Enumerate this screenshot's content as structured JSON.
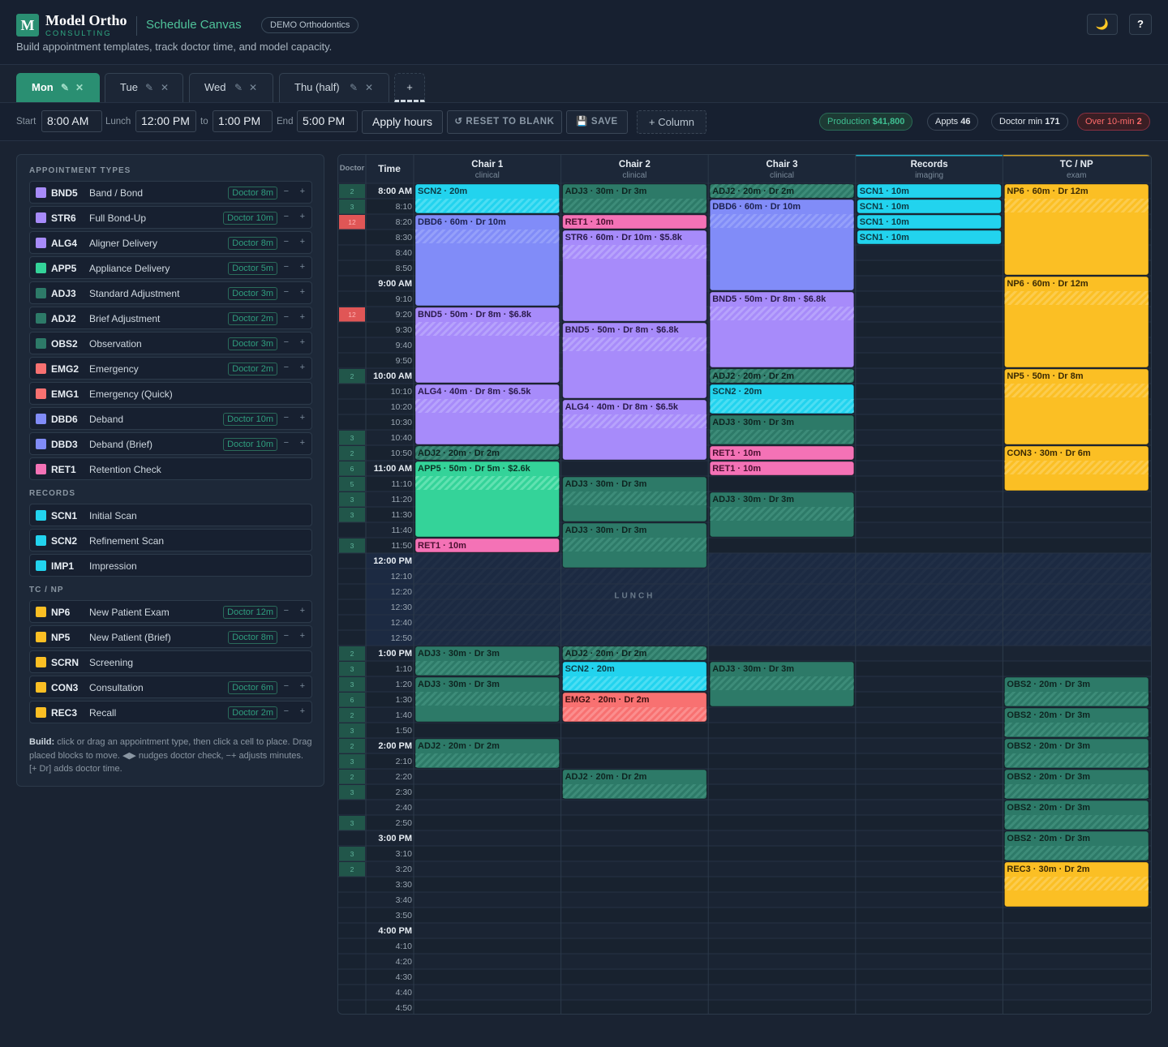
{
  "header": {
    "logo_letter": "M",
    "brand": "Model Ortho",
    "brand_sub": "CONSULTING",
    "app_title": "Schedule Canvas",
    "org_badge": "DEMO Orthodontics",
    "tagline": "Build appointment templates, track doctor time, and model capacity.",
    "theme_icon": "moon-icon",
    "theme_glyph": "🌙",
    "help_label": "?"
  },
  "tabs": [
    {
      "label": "Mon",
      "active": true
    },
    {
      "label": "Tue",
      "active": false
    },
    {
      "label": "Wed",
      "active": false
    },
    {
      "label": "Thu (half)",
      "active": false
    }
  ],
  "tab_edit_glyph": "✎",
  "tab_close_glyph": "✕",
  "tab_add_label": "+",
  "toolbar": {
    "start_label": "Start",
    "start_value": "8:00 AM",
    "lunch_label": "Lunch",
    "lunch_start": "12:00 PM",
    "to_label": "to",
    "lunch_end": "1:00 PM",
    "end_label": "End",
    "end_value": "5:00 PM",
    "apply_label": "Apply hours",
    "reset_label": "↺ RESET TO BLANK",
    "save_label": "💾 SAVE",
    "add_column_label": "+ Column"
  },
  "stats": {
    "production_label": "Production",
    "production_value": "$41,800",
    "appts_label": "Appts",
    "appts_value": "46",
    "doctor_label": "Doctor min",
    "doctor_value": "171",
    "over_label": "Over 10-min",
    "over_value": "2"
  },
  "colors": {
    "bg": "#1a2332",
    "accent": "#2a8f72",
    "purple": "#a78bfa",
    "indigo": "#818cf8",
    "green": "#34d399",
    "teal": "#2d7a68",
    "red": "#f87171",
    "pink": "#f472b6",
    "cyan": "#22d3ee",
    "yellow": "#fbbf24"
  },
  "panel": {
    "sections": [
      {
        "title": "APPOINTMENT TYPES",
        "items": [
          {
            "code": "BND5",
            "name": "Band / Bond",
            "doctor": "Doctor 8m",
            "color": "#a78bfa"
          },
          {
            "code": "STR6",
            "name": "Full Bond-Up",
            "doctor": "Doctor 10m",
            "color": "#a78bfa"
          },
          {
            "code": "ALG4",
            "name": "Aligner Delivery",
            "doctor": "Doctor 8m",
            "color": "#a78bfa"
          },
          {
            "code": "APP5",
            "name": "Appliance Delivery",
            "doctor": "Doctor 5m",
            "color": "#34d399"
          },
          {
            "code": "ADJ3",
            "name": "Standard Adjustment",
            "doctor": "Doctor 3m",
            "color": "#2d7a68"
          },
          {
            "code": "ADJ2",
            "name": "Brief Adjustment",
            "doctor": "Doctor 2m",
            "color": "#2d7a68"
          },
          {
            "code": "OBS2",
            "name": "Observation",
            "doctor": "Doctor 3m",
            "color": "#2d7a68"
          },
          {
            "code": "EMG2",
            "name": "Emergency",
            "doctor": "Doctor 2m",
            "color": "#f87171"
          },
          {
            "code": "EMG1",
            "name": "Emergency (Quick)",
            "doctor": "",
            "color": "#f87171"
          },
          {
            "code": "DBD6",
            "name": "Deband",
            "doctor": "Doctor 10m",
            "color": "#818cf8"
          },
          {
            "code": "DBD3",
            "name": "Deband (Brief)",
            "doctor": "Doctor 10m",
            "color": "#818cf8"
          },
          {
            "code": "RET1",
            "name": "Retention Check",
            "doctor": "",
            "color": "#f472b6"
          }
        ]
      },
      {
        "title": "RECORDS",
        "items": [
          {
            "code": "SCN1",
            "name": "Initial Scan",
            "doctor": "",
            "color": "#22d3ee"
          },
          {
            "code": "SCN2",
            "name": "Refinement Scan",
            "doctor": "",
            "color": "#22d3ee"
          },
          {
            "code": "IMP1",
            "name": "Impression",
            "doctor": "",
            "color": "#22d3ee"
          }
        ]
      },
      {
        "title": "TC / NP",
        "items": [
          {
            "code": "NP6",
            "name": "New Patient Exam",
            "doctor": "Doctor 12m",
            "color": "#fbbf24"
          },
          {
            "code": "NP5",
            "name": "New Patient (Brief)",
            "doctor": "Doctor 8m",
            "color": "#fbbf24"
          },
          {
            "code": "SCRN",
            "name": "Screening",
            "doctor": "",
            "color": "#fbbf24"
          },
          {
            "code": "CON3",
            "name": "Consultation",
            "doctor": "Doctor 6m",
            "color": "#fbbf24"
          },
          {
            "code": "REC3",
            "name": "Recall",
            "doctor": "Doctor 2m",
            "color": "#fbbf24"
          }
        ]
      }
    ],
    "minus_glyph": "−",
    "plus_glyph": "+",
    "help_bold": "Build:",
    "help_text": " click or drag an appointment type, then click a cell to place. Drag placed blocks to move. ◀▶ nudges doctor check, −+ adjusts minutes. [+ Dr] adds doctor time."
  },
  "grid": {
    "doctor_header": "Doctor",
    "time_header": "Time",
    "lunch_label": "LUNCH",
    "columns": [
      {
        "name": "Chair 1",
        "sub": "clinical"
      },
      {
        "name": "Chair 2",
        "sub": "clinical"
      },
      {
        "name": "Chair 3",
        "sub": "clinical"
      },
      {
        "name": "Records",
        "sub": "imaging"
      },
      {
        "name": "TC / NP",
        "sub": "exam"
      }
    ],
    "times": [
      "8:00 AM",
      "8:10",
      "8:20",
      "8:30",
      "8:40",
      "8:50",
      "9:00 AM",
      "9:10",
      "9:20",
      "9:30",
      "9:40",
      "9:50",
      "10:00 AM",
      "10:10",
      "10:20",
      "10:30",
      "10:40",
      "10:50",
      "11:00 AM",
      "11:10",
      "11:20",
      "11:30",
      "11:40",
      "11:50",
      "12:00 PM",
      "12:10",
      "12:20",
      "12:30",
      "12:40",
      "12:50",
      "1:00 PM",
      "1:10",
      "1:20",
      "1:30",
      "1:40",
      "1:50",
      "2:00 PM",
      "2:10",
      "2:20",
      "2:30",
      "2:40",
      "2:50",
      "3:00 PM",
      "3:10",
      "3:20",
      "3:30",
      "3:40",
      "3:50",
      "4:00 PM",
      "4:10",
      "4:20",
      "4:30",
      "4:40",
      "4:50"
    ],
    "doctor_load": [
      "2",
      "3",
      "12",
      "",
      "",
      "",
      "",
      "",
      "12",
      "",
      "",
      "",
      "2",
      "",
      "",
      "",
      "3",
      "2",
      "6",
      "5",
      "3",
      "3",
      "",
      "3",
      "",
      "",
      "",
      "",
      "",
      "",
      "2",
      "3",
      "3",
      "6",
      "2",
      "3",
      "2",
      "3",
      "2",
      "3",
      "",
      "3",
      "",
      "3",
      "2",
      "",
      "",
      "",
      "",
      "",
      "",
      "",
      "",
      ""
    ],
    "blocks": [
      {
        "col": 0,
        "start": 0,
        "len": 2,
        "label": "SCN2 · 20m",
        "kind": "cyan"
      },
      {
        "col": 0,
        "start": 2,
        "len": 6,
        "label": "DBD6 · 60m · Dr 10m",
        "kind": "indigo"
      },
      {
        "col": 0,
        "start": 8,
        "len": 5,
        "label": "BND5 · 50m · Dr 8m · $6.8k",
        "kind": "purple"
      },
      {
        "col": 0,
        "start": 13,
        "len": 4,
        "label": "ALG4 · 40m · Dr 8m · $6.5k",
        "kind": "purple"
      },
      {
        "col": 0,
        "start": 17,
        "len": 1,
        "label": "ADJ2 · 20m · Dr 2m",
        "kind": "teal"
      },
      {
        "col": 0,
        "start": 18,
        "len": 5,
        "label": "APP5 · 50m · Dr 5m · $2.6k",
        "kind": "green"
      },
      {
        "col": 0,
        "start": 23,
        "len": 1,
        "label": "RET1 · 10m",
        "kind": "pink"
      },
      {
        "col": 0,
        "start": 30,
        "len": 2,
        "label": "ADJ3 · 30m · Dr 3m",
        "kind": "teal"
      },
      {
        "col": 0,
        "start": 32,
        "len": 3,
        "label": "ADJ3 · 30m · Dr 3m",
        "kind": "teal"
      },
      {
        "col": 0,
        "start": 36,
        "len": 2,
        "label": "ADJ2 · 20m · Dr 2m",
        "kind": "teal"
      },
      {
        "col": 1,
        "start": 0,
        "len": 2,
        "label": "ADJ3 · 30m · Dr 3m",
        "kind": "teal"
      },
      {
        "col": 1,
        "start": 2,
        "len": 1,
        "label": "RET1 · 10m",
        "kind": "pink"
      },
      {
        "col": 1,
        "start": 3,
        "len": 6,
        "label": "STR6 · 60m · Dr 10m · $5.8k",
        "kind": "purple"
      },
      {
        "col": 1,
        "start": 9,
        "len": 5,
        "label": "BND5 · 50m · Dr 8m · $6.8k",
        "kind": "purple"
      },
      {
        "col": 1,
        "start": 14,
        "len": 4,
        "label": "ALG4 · 40m · Dr 8m · $6.5k",
        "kind": "purple"
      },
      {
        "col": 1,
        "start": 19,
        "len": 3,
        "label": "ADJ3 · 30m · Dr 3m",
        "kind": "teal"
      },
      {
        "col": 1,
        "start": 22,
        "len": 3,
        "label": "ADJ3 · 30m · Dr 3m",
        "kind": "teal"
      },
      {
        "col": 1,
        "start": 30,
        "len": 1,
        "label": "ADJ2 · 20m · Dr 2m",
        "kind": "teal"
      },
      {
        "col": 1,
        "start": 31,
        "len": 2,
        "label": "SCN2 · 20m",
        "kind": "cyan"
      },
      {
        "col": 1,
        "start": 33,
        "len": 2,
        "label": "EMG2 · 20m · Dr 2m",
        "kind": "red"
      },
      {
        "col": 1,
        "start": 38,
        "len": 2,
        "label": "ADJ2 · 20m · Dr 2m",
        "kind": "teal"
      },
      {
        "col": 2,
        "start": 0,
        "len": 1,
        "label": "ADJ2 · 20m · Dr 2m",
        "kind": "teal"
      },
      {
        "col": 2,
        "start": 1,
        "len": 6,
        "label": "DBD6 · 60m · Dr 10m",
        "kind": "indigo"
      },
      {
        "col": 2,
        "start": 7,
        "len": 5,
        "label": "BND5 · 50m · Dr 8m · $6.8k",
        "kind": "purple"
      },
      {
        "col": 2,
        "start": 12,
        "len": 1,
        "label": "ADJ2 · 20m · Dr 2m",
        "kind": "teal"
      },
      {
        "col": 2,
        "start": 13,
        "len": 2,
        "label": "SCN2 · 20m",
        "kind": "cyan"
      },
      {
        "col": 2,
        "start": 15,
        "len": 2,
        "label": "ADJ3 · 30m · Dr 3m",
        "kind": "teal"
      },
      {
        "col": 2,
        "start": 17,
        "len": 1,
        "label": "RET1 · 10m",
        "kind": "pink"
      },
      {
        "col": 2,
        "start": 18,
        "len": 1,
        "label": "RET1 · 10m",
        "kind": "pink"
      },
      {
        "col": 2,
        "start": 20,
        "len": 3,
        "label": "ADJ3 · 30m · Dr 3m",
        "kind": "teal"
      },
      {
        "col": 2,
        "start": 31,
        "len": 3,
        "label": "ADJ3 · 30m · Dr 3m",
        "kind": "teal"
      },
      {
        "col": 3,
        "start": 0,
        "len": 1,
        "label": "SCN1 · 10m",
        "kind": "cyan"
      },
      {
        "col": 3,
        "start": 1,
        "len": 1,
        "label": "SCN1 · 10m",
        "kind": "cyan"
      },
      {
        "col": 3,
        "start": 2,
        "len": 1,
        "label": "SCN1 · 10m",
        "kind": "cyan"
      },
      {
        "col": 3,
        "start": 3,
        "len": 1,
        "label": "SCN1 · 10m",
        "kind": "cyan"
      },
      {
        "col": 4,
        "start": 0,
        "len": 6,
        "label": "NP6 · 60m · Dr 12m",
        "kind": "yellow"
      },
      {
        "col": 4,
        "start": 6,
        "len": 6,
        "label": "NP6 · 60m · Dr 12m",
        "kind": "yellow"
      },
      {
        "col": 4,
        "start": 12,
        "len": 5,
        "label": "NP5 · 50m · Dr 8m",
        "kind": "yellow"
      },
      {
        "col": 4,
        "start": 17,
        "len": 3,
        "label": "CON3 · 30m · Dr 6m",
        "kind": "yellow"
      },
      {
        "col": 4,
        "start": 32,
        "len": 2,
        "label": "OBS2 · 20m · Dr 3m",
        "kind": "teal"
      },
      {
        "col": 4,
        "start": 34,
        "len": 2,
        "label": "OBS2 · 20m · Dr 3m",
        "kind": "teal"
      },
      {
        "col": 4,
        "start": 36,
        "len": 2,
        "label": "OBS2 · 20m · Dr 3m",
        "kind": "teal"
      },
      {
        "col": 4,
        "start": 38,
        "len": 2,
        "label": "OBS2 · 20m · Dr 3m",
        "kind": "teal"
      },
      {
        "col": 4,
        "start": 40,
        "len": 2,
        "label": "OBS2 · 20m · Dr 3m",
        "kind": "teal"
      },
      {
        "col": 4,
        "start": 42,
        "len": 2,
        "label": "OBS2 · 20m · Dr 3m",
        "kind": "teal"
      },
      {
        "col": 4,
        "start": 44,
        "len": 3,
        "label": "REC3 · 30m · Dr 2m",
        "kind": "yellow"
      }
    ]
  }
}
